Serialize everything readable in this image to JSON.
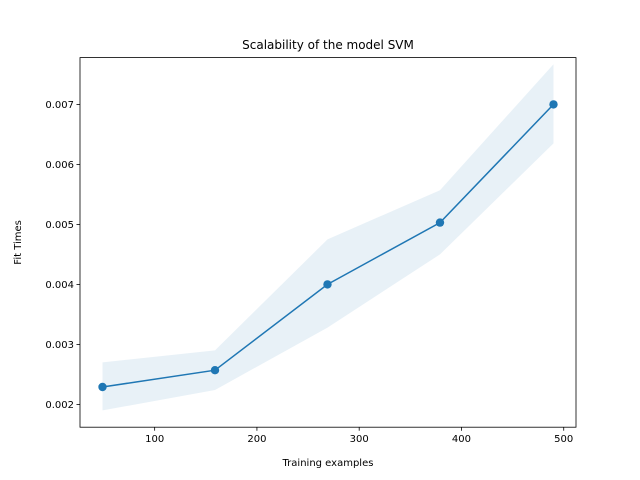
{
  "chart_data": {
    "type": "line",
    "title": "Scalability of the model SVM",
    "xlabel": "Training examples",
    "ylabel": "Fit Times",
    "xlim": [
      27,
      512
    ],
    "ylim": [
      0.00162,
      0.00778
    ],
    "xticks": [
      100,
      200,
      300,
      400,
      500
    ],
    "yticks": [
      0.002,
      0.003,
      0.004,
      0.005,
      0.006,
      0.007
    ],
    "xtick_labels": [
      "100",
      "200",
      "300",
      "400",
      "500"
    ],
    "ytick_labels": [
      "0.002",
      "0.003",
      "0.004",
      "0.005",
      "0.006",
      "0.007"
    ],
    "grid": false,
    "legend": "none",
    "series": [
      {
        "x": [
          49,
          159,
          269,
          379,
          490
        ],
        "y": [
          0.00229,
          0.00257,
          0.004,
          0.00503,
          0.007
        ],
        "band_lower": [
          0.0019,
          0.00224,
          0.00328,
          0.0045,
          0.00635
        ],
        "band_upper": [
          0.0027,
          0.0029,
          0.00475,
          0.00557,
          0.00767
        ],
        "color": "#1f77b4",
        "band_color": "#1f77b4"
      }
    ]
  }
}
